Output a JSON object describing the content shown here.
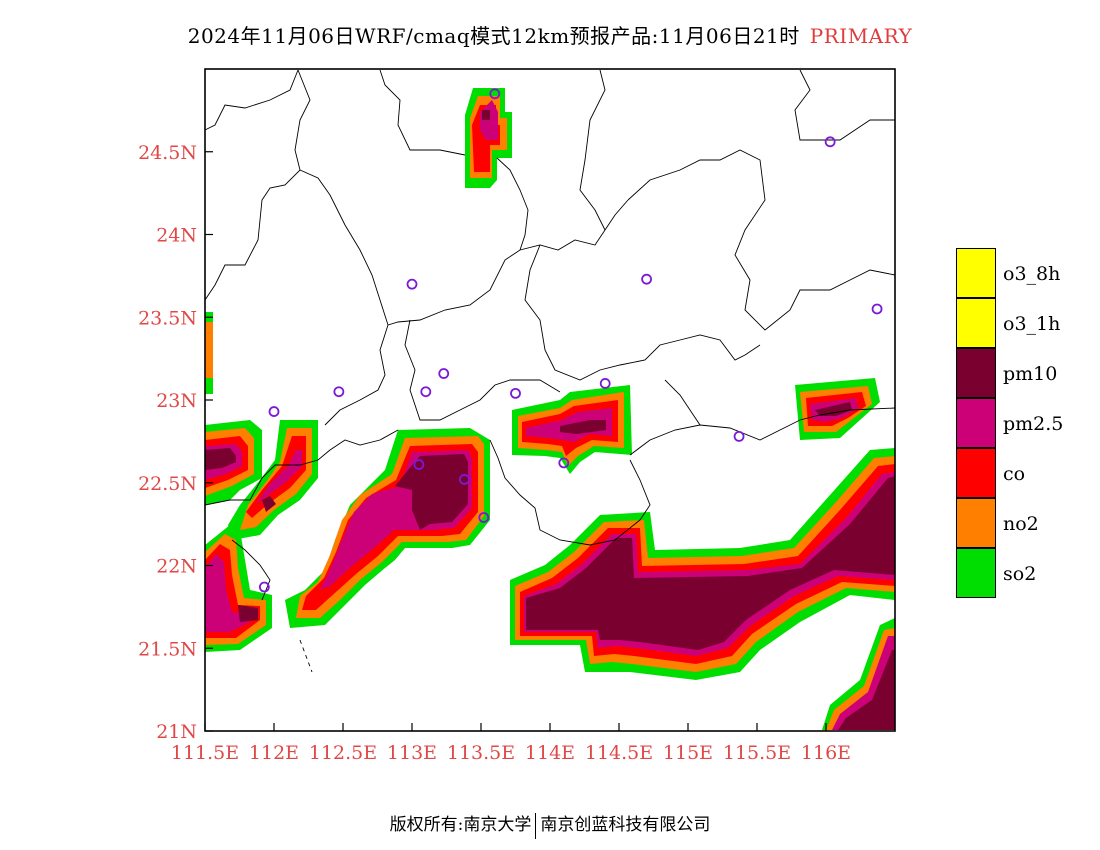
{
  "title": {
    "main": "2024年11月06日WRF/cmaq模式12km预报产品:11月06日21时",
    "tag": "PRIMARY"
  },
  "map": {
    "lon_range": [
      111.5,
      116.5
    ],
    "lat_range": [
      21,
      25
    ],
    "x_tick_labels": [
      "111.5E",
      "112E",
      "112.5E",
      "113E",
      "113.5E",
      "114E",
      "114.5E",
      "115E",
      "115.5E",
      "116E"
    ],
    "y_tick_labels": [
      "21N",
      "21.5N",
      "22N",
      "22.5N",
      "23N",
      "23.5N",
      "24N",
      "24.5N"
    ],
    "tick_color": "#e04848",
    "stations": [
      {
        "lon": 111.93,
        "lat": 21.87
      },
      {
        "lon": 112.0,
        "lat": 22.93
      },
      {
        "lon": 112.47,
        "lat": 23.05
      },
      {
        "lon": 113.0,
        "lat": 23.7
      },
      {
        "lon": 113.1,
        "lat": 23.05
      },
      {
        "lon": 113.23,
        "lat": 23.16
      },
      {
        "lon": 113.05,
        "lat": 22.61
      },
      {
        "lon": 113.38,
        "lat": 22.52
      },
      {
        "lon": 113.52,
        "lat": 22.29
      },
      {
        "lon": 113.6,
        "lat": 24.85
      },
      {
        "lon": 113.75,
        "lat": 23.04
      },
      {
        "lon": 114.1,
        "lat": 22.62
      },
      {
        "lon": 114.4,
        "lat": 23.1
      },
      {
        "lon": 114.7,
        "lat": 23.73
      },
      {
        "lon": 115.37,
        "lat": 22.78
      },
      {
        "lon": 116.03,
        "lat": 24.56
      },
      {
        "lon": 116.37,
        "lat": 23.55
      }
    ]
  },
  "legend": [
    {
      "name": "o3_8h",
      "color": "#ffff00"
    },
    {
      "name": "o3_1h",
      "color": "#ffff00"
    },
    {
      "name": "pm10",
      "color": "#7a0030"
    },
    {
      "name": "pm2.5",
      "color": "#cc0077"
    },
    {
      "name": "co",
      "color": "#ff0000"
    },
    {
      "name": "no2",
      "color": "#ff8000"
    },
    {
      "name": "so2",
      "color": "#00dd00"
    }
  ],
  "footer": {
    "left": "版权所有:南京大学",
    "right": "南京创蓝科技有限公司"
  }
}
